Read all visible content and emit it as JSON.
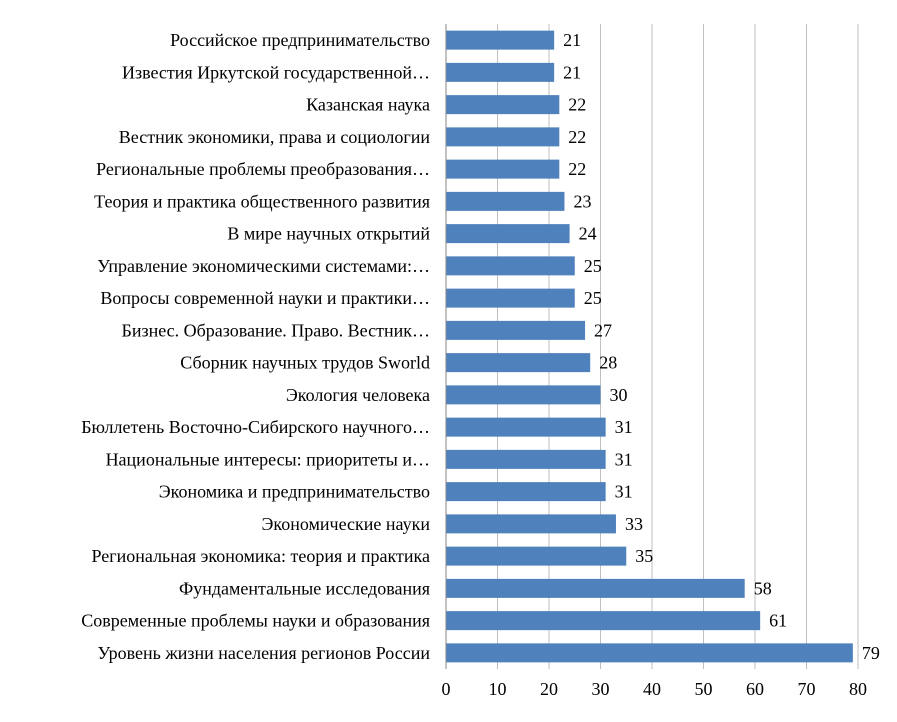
{
  "chart_data": {
    "type": "bar",
    "orientation": "horizontal",
    "categories": [
      "Российское предпринимательство",
      "Известия Иркутской государственной…",
      "Казанская наука",
      "Вестник экономики, права и социологии",
      "Региональные проблемы преобразования…",
      "Теория и практика общественного развития",
      "В мире научных открытий",
      "Управление экономическими системами:…",
      "Вопросы современной науки и практики…",
      "Бизнес. Образование. Право. Вестник…",
      "Сборник научных трудов Sworld",
      "Экология человека",
      "Бюллетень Восточно-Сибирского научного…",
      "Национальные интересы: приоритеты и…",
      "Экономика и предпринимательство",
      "Экономические науки",
      "Региональная экономика: теория и практика",
      "Фундаментальные исследования",
      "Современные проблемы науки и образования",
      "Уровень жизни населения регионов России"
    ],
    "values": [
      21,
      21,
      22,
      22,
      22,
      23,
      24,
      25,
      25,
      27,
      28,
      30,
      31,
      31,
      31,
      33,
      35,
      58,
      61,
      79
    ],
    "value_labels": [
      "21",
      "21",
      "22",
      "22",
      "22",
      "23",
      "24",
      "25",
      "25",
      "27",
      "28",
      "30",
      "31",
      "31",
      "31",
      "33",
      "35",
      "58",
      "61",
      "79"
    ],
    "xlim": [
      0,
      80
    ],
    "x_ticks": [
      "0",
      "10",
      "20",
      "30",
      "40",
      "50",
      "60",
      "70",
      "80"
    ],
    "x_tick_values": [
      0,
      10,
      20,
      30,
      40,
      50,
      60,
      70,
      80
    ],
    "grid": true,
    "bar_color": "#4f81bd",
    "legend": "none"
  }
}
